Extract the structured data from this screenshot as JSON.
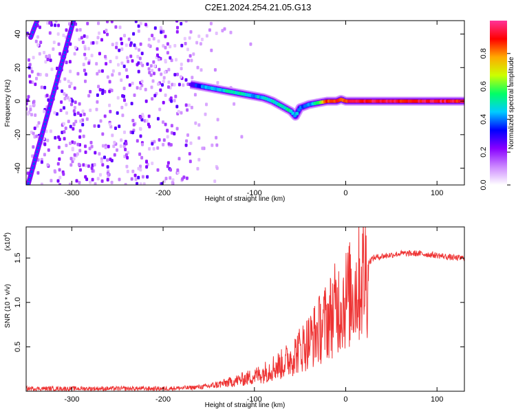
{
  "title": "C2E1.2024.254.21.05.G13",
  "colors": {
    "snr_line": "#ee3333",
    "frame": "#000000",
    "background": "#ffffff"
  },
  "chart_data": [
    {
      "type": "heatmap",
      "xlabel": "Height of straight line (km)",
      "ylabel": "Frequency (Hz)",
      "xlim": [
        -350,
        130
      ],
      "ylim": [
        -50,
        48
      ],
      "x_ticks": [
        -300,
        -200,
        -100,
        0,
        100
      ],
      "x_tick_labels": [
        "-300",
        "-200",
        "-100",
        "0",
        "100"
      ],
      "y_ticks": [
        -40,
        -20,
        0,
        20,
        40
      ],
      "y_tick_labels": [
        "-40",
        "-20",
        "0",
        "20",
        "40"
      ],
      "grid": false,
      "colorbar": {
        "label": "Normalized spectral amplitude",
        "range": [
          0,
          1
        ],
        "ticks": [
          0.0,
          0.2,
          0.4,
          0.6,
          0.8
        ],
        "tick_labels": [
          "0.0",
          "0.2",
          "0.4",
          "0.6",
          "0.8"
        ],
        "colormap": [
          "#ffffff",
          "#cc88ff",
          "#8800ff",
          "#0000ff",
          "#00ccff",
          "#00ff66",
          "#ccff00",
          "#ffaa00",
          "#ff0000",
          "#ff3399"
        ]
      },
      "ridge": {
        "x": [
          -170,
          -160,
          -150,
          -140,
          -130,
          -120,
          -110,
          -100,
          -90,
          -80,
          -70,
          -60,
          -55,
          -50,
          -40,
          -30,
          -20,
          -10,
          -5,
          0,
          10,
          20,
          40,
          60,
          80,
          100,
          120,
          130
        ],
        "y": [
          10,
          9,
          8,
          7,
          6,
          5,
          4,
          3,
          2,
          0,
          -3,
          -6,
          -9,
          -4,
          -2,
          -1,
          0,
          0,
          1,
          0,
          0,
          0,
          0,
          0,
          0,
          0,
          0,
          0
        ],
        "amplitude": [
          0.3,
          0.35,
          0.4,
          0.45,
          0.5,
          0.5,
          0.45,
          0.45,
          0.45,
          0.45,
          0.5,
          0.5,
          0.45,
          0.35,
          0.4,
          0.55,
          0.85,
          0.9,
          0.8,
          0.85,
          0.9,
          0.9,
          0.95,
          0.9,
          0.9,
          0.95,
          0.9,
          0.9
        ]
      },
      "diagonal_streaks": [
        {
          "x": [
            -348,
            -298
          ],
          "y": [
            -50,
            48
          ]
        },
        {
          "x": [
            -345,
            -338
          ],
          "y": [
            38,
            48
          ]
        }
      ]
    },
    {
      "type": "line",
      "xlabel": "Height of straight line (km)",
      "ylabel": "SNR (10 * v/v)",
      "y_multiplier": "(x10",
      "y_multiplier_exp": "4",
      "y_multiplier_close": ")",
      "xlim": [
        -350,
        130
      ],
      "ylim": [
        0,
        1.85
      ],
      "x_ticks": [
        -300,
        -200,
        -100,
        0,
        100
      ],
      "x_tick_labels": [
        "-300",
        "-200",
        "-100",
        "0",
        "100"
      ],
      "y_ticks": [
        0.5,
        1.0,
        1.5
      ],
      "y_tick_labels": [
        "0.5",
        "1.0",
        "1.5"
      ],
      "grid": false,
      "series": [
        {
          "x": [
            -350,
            -300,
            -250,
            -200,
            -170,
            -150,
            -130,
            -110,
            -100,
            -90,
            -80,
            -70,
            -60,
            -50,
            -40,
            -30,
            -20,
            -10,
            0,
            5,
            10,
            15,
            20,
            30,
            40,
            60,
            80,
            100,
            120,
            130
          ],
          "y": [
            0.03,
            0.03,
            0.03,
            0.03,
            0.04,
            0.06,
            0.1,
            0.15,
            0.18,
            0.22,
            0.28,
            0.32,
            0.4,
            0.5,
            0.6,
            0.72,
            0.85,
            1.0,
            1.1,
            1.15,
            1.2,
            1.3,
            1.4,
            1.5,
            1.52,
            1.55,
            1.55,
            1.53,
            1.5,
            1.5
          ]
        }
      ]
    }
  ]
}
